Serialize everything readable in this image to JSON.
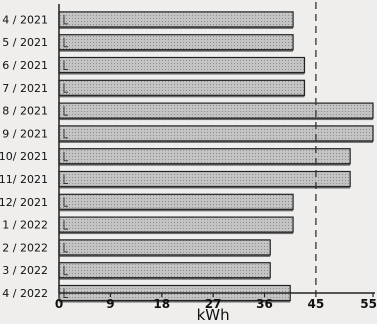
{
  "chart_data": {
    "type": "bar",
    "orientation": "horizontal",
    "categories": [
      "4 / 2021",
      "5 / 2021",
      "6 / 2021",
      "7 / 2021",
      "8 / 2021",
      "9 / 2021",
      "10/ 2021",
      "11/ 2021",
      "12/ 2021",
      "1 / 2022",
      "2 / 2022",
      "3 / 2022",
      "4 / 2022"
    ],
    "values": [
      41,
      41,
      43,
      43,
      55,
      55,
      51,
      51,
      41,
      41,
      37,
      37,
      40.5
    ],
    "xlabel": "kWh",
    "xticks": [
      "0",
      "9",
      "18",
      "27",
      "36",
      "45",
      "55"
    ],
    "xlim": [
      0,
      55
    ],
    "reference_line": {
      "value": 45,
      "style": "dashed"
    },
    "grid": false,
    "bar_color": "#bcbcbc"
  }
}
